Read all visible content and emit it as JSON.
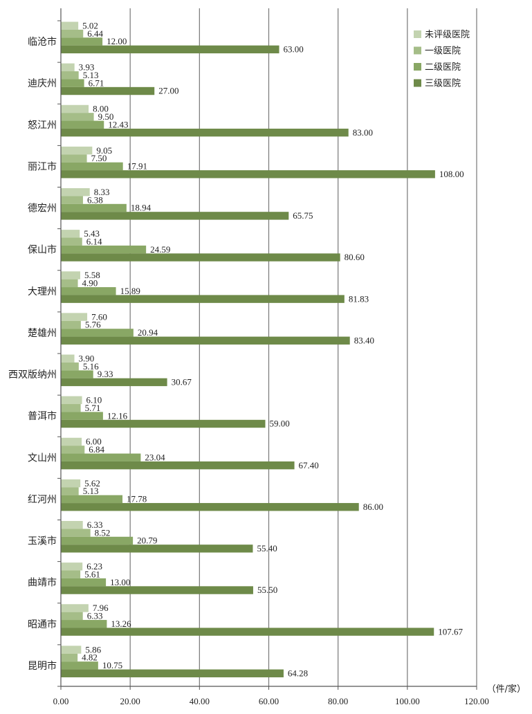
{
  "chart_data": {
    "type": "bar",
    "orientation": "horizontal",
    "categories": [
      "临沧市",
      "迪庆州",
      "怒江州",
      "丽江市",
      "德宏州",
      "保山市",
      "大理州",
      "楚雄州",
      "西双版纳州",
      "普洱市",
      "文山州",
      "红河州",
      "玉溪市",
      "曲靖市",
      "昭通市",
      "昆明市"
    ],
    "series": [
      {
        "name": "未评级医院",
        "color": "#c3d3b0",
        "values": [
          5.02,
          3.93,
          8.0,
          9.05,
          8.33,
          5.43,
          5.58,
          7.6,
          3.9,
          6.1,
          6.0,
          5.62,
          6.33,
          6.23,
          7.96,
          5.86
        ]
      },
      {
        "name": "一级医院",
        "color": "#a5bd88",
        "values": [
          6.44,
          5.13,
          9.5,
          7.5,
          6.38,
          6.14,
          4.9,
          5.76,
          5.16,
          5.71,
          6.84,
          5.13,
          8.52,
          5.61,
          6.33,
          4.82
        ]
      },
      {
        "name": "二级医院",
        "color": "#89a765",
        "values": [
          12.0,
          6.71,
          12.43,
          17.91,
          18.94,
          24.59,
          15.89,
          20.94,
          9.33,
          12.16,
          23.04,
          17.78,
          20.79,
          13.0,
          13.26,
          10.75
        ]
      },
      {
        "name": "三级医院",
        "color": "#6e8a49",
        "values": [
          63.0,
          27.0,
          83.0,
          108.0,
          65.75,
          80.6,
          81.83,
          83.4,
          30.67,
          59.0,
          67.4,
          86.0,
          55.4,
          55.5,
          107.67,
          64.28
        ]
      }
    ],
    "xlim": [
      0,
      120
    ],
    "x_ticks": [
      "0.00",
      "20.00",
      "40.00",
      "60.00",
      "80.00",
      "100.00",
      "120.00"
    ],
    "x_unit": "（件/家）",
    "grid": "vertical",
    "legend_position": "top-right"
  }
}
